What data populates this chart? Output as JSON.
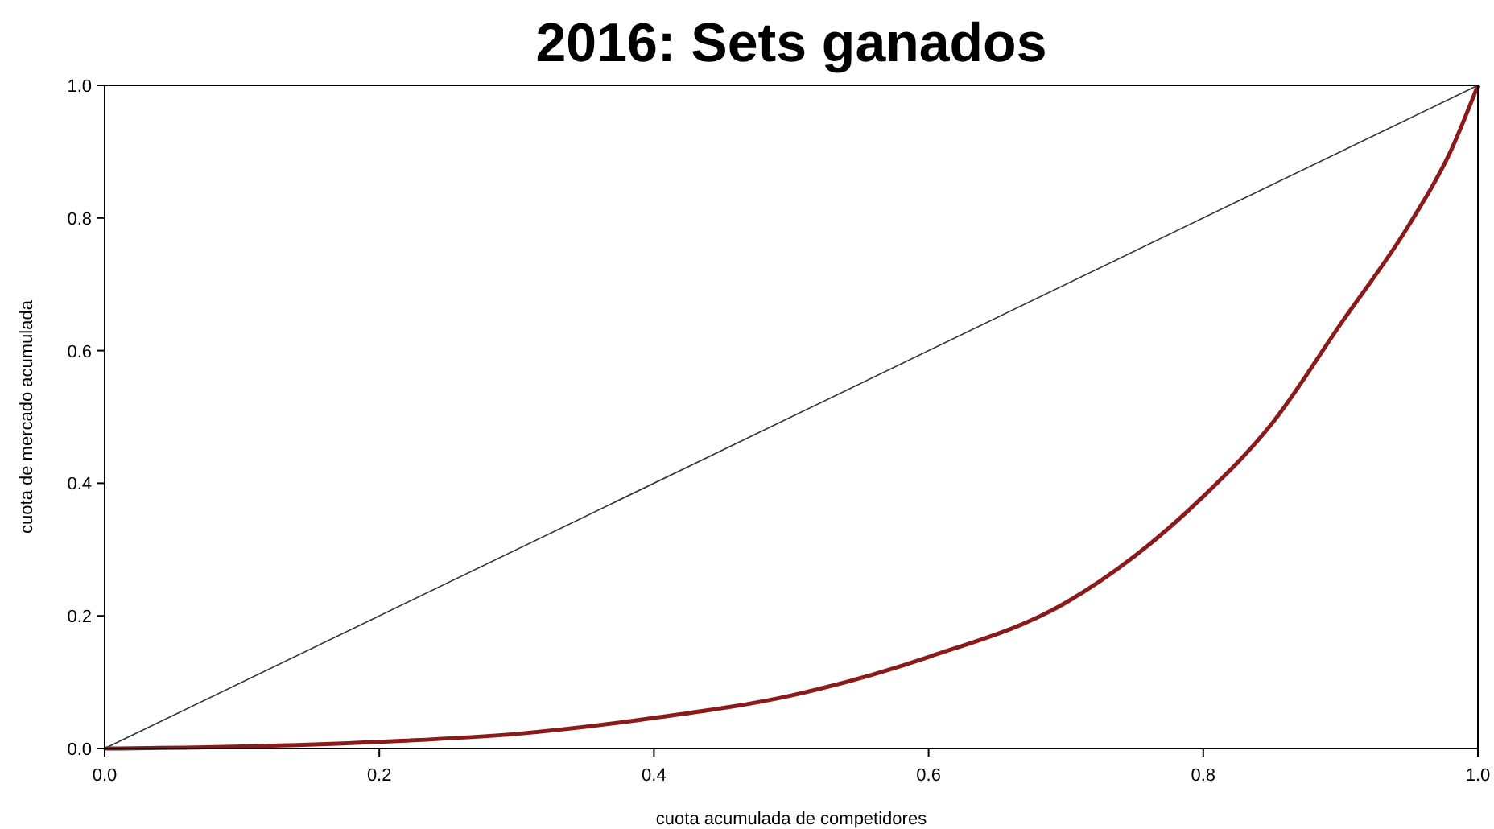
{
  "chart_data": {
    "type": "line",
    "title": "2016: Sets ganados",
    "xlabel": "cuota acumulada de competidores",
    "ylabel": "cuota de mercado acumulada",
    "xlim": [
      0,
      1
    ],
    "ylim": [
      0,
      1
    ],
    "xticks": [
      {
        "value": 0,
        "label": "0.0"
      },
      {
        "value": 0.2,
        "label": "0.2"
      },
      {
        "value": 0.4,
        "label": "0.4"
      },
      {
        "value": 0.6,
        "label": "0.6"
      },
      {
        "value": 0.8,
        "label": "0.8"
      },
      {
        "value": 1,
        "label": "1.0"
      }
    ],
    "yticks": [
      {
        "value": 0,
        "label": "0.0"
      },
      {
        "value": 0.2,
        "label": "0.2"
      },
      {
        "value": 0.4,
        "label": "0.4"
      },
      {
        "value": 0.6,
        "label": "0.6"
      },
      {
        "value": 0.8,
        "label": "0.8"
      },
      {
        "value": 1,
        "label": "1.0"
      }
    ],
    "grid": false,
    "marker": "none",
    "line_style": "solid",
    "series": [
      {
        "color": "#333333",
        "x": [
          0,
          1
        ],
        "values": [
          0,
          1
        ]
      },
      {
        "color": "#8b1a1a",
        "x": [
          0,
          0.1,
          0.2,
          0.3,
          0.4,
          0.5,
          0.6,
          0.7,
          0.75,
          0.8,
          0.85,
          0.9,
          0.95,
          0.98,
          1
        ],
        "values": [
          0,
          0.003,
          0.01,
          0.022,
          0.046,
          0.08,
          0.138,
          0.22,
          0.29,
          0.38,
          0.49,
          0.64,
          0.79,
          0.9,
          1
        ]
      }
    ]
  }
}
